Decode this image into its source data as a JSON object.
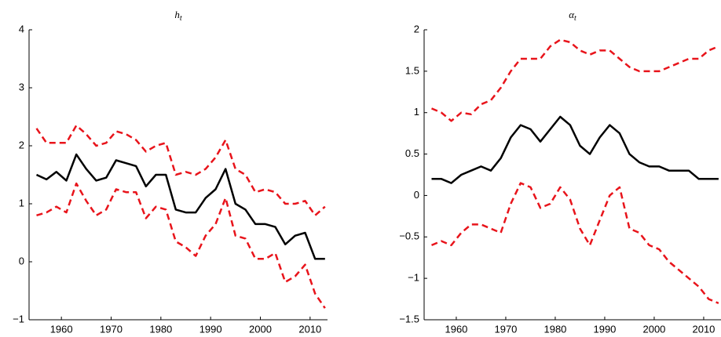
{
  "chart_data": [
    {
      "type": "line",
      "title": "h",
      "title_subscript": "t",
      "x": [
        1955,
        1957,
        1959,
        1961,
        1963,
        1965,
        1967,
        1969,
        1971,
        1973,
        1975,
        1977,
        1979,
        1981,
        1983,
        1985,
        1987,
        1989,
        1991,
        1993,
        1995,
        1997,
        1999,
        2001,
        2003,
        2005,
        2007,
        2009,
        2011,
        2013
      ],
      "xlim": [
        1953.5,
        2013.5
      ],
      "xticks": [
        1960,
        1970,
        1980,
        1990,
        2000,
        2010
      ],
      "ylim": [
        -1,
        4
      ],
      "yticks": [
        {
          "value": -1,
          "label": "−1"
        },
        0,
        1,
        2,
        3,
        4
      ],
      "series": [
        {
          "color": "#000000",
          "style": "solid",
          "values": [
            1.5,
            1.42,
            1.55,
            1.4,
            1.85,
            1.6,
            1.4,
            1.45,
            1.75,
            1.7,
            1.65,
            1.3,
            1.5,
            1.5,
            0.9,
            0.85,
            0.85,
            1.1,
            1.25,
            1.6,
            1.0,
            0.9,
            0.65,
            0.65,
            0.6,
            0.3,
            0.45,
            0.5,
            0.05,
            0.05
          ]
        },
        {
          "color": "#e8141b",
          "style": "dashed",
          "values": [
            2.3,
            2.05,
            2.05,
            2.05,
            2.35,
            2.2,
            2.0,
            2.05,
            2.25,
            2.2,
            2.1,
            1.9,
            2.0,
            2.05,
            1.5,
            1.55,
            1.5,
            1.6,
            1.8,
            2.1,
            1.6,
            1.5,
            1.2,
            1.25,
            1.2,
            1.0,
            1.0,
            1.05,
            0.8,
            0.95
          ]
        },
        {
          "color": "#e8141b",
          "style": "dashed",
          "values": [
            0.8,
            0.85,
            0.95,
            0.85,
            1.35,
            1.05,
            0.8,
            0.9,
            1.25,
            1.2,
            1.2,
            0.75,
            0.95,
            0.9,
            0.35,
            0.25,
            0.1,
            0.45,
            0.65,
            1.1,
            0.45,
            0.4,
            0.05,
            0.05,
            0.15,
            -0.35,
            -0.25,
            -0.05,
            -0.55,
            -0.8
          ]
        }
      ]
    },
    {
      "type": "line",
      "title": "α",
      "title_subscript": "t",
      "x": [
        1955,
        1957,
        1959,
        1961,
        1963,
        1965,
        1967,
        1969,
        1971,
        1973,
        1975,
        1977,
        1979,
        1981,
        1983,
        1985,
        1987,
        1989,
        1991,
        1993,
        1995,
        1997,
        1999,
        2001,
        2003,
        2005,
        2007,
        2009,
        2011,
        2013
      ],
      "xlim": [
        1953.5,
        2013.5
      ],
      "xticks": [
        1960,
        1970,
        1980,
        1990,
        2000,
        2010
      ],
      "ylim": [
        -1.5,
        2
      ],
      "yticks": [
        {
          "value": -1.5,
          "label": "−1.5"
        },
        {
          "value": -1,
          "label": "−1"
        },
        {
          "value": -0.5,
          "label": "−0.5"
        },
        0,
        0.5,
        1,
        1.5,
        2
      ],
      "series": [
        {
          "color": "#000000",
          "style": "solid",
          "values": [
            0.2,
            0.2,
            0.15,
            0.25,
            0.3,
            0.35,
            0.3,
            0.45,
            0.7,
            0.85,
            0.8,
            0.65,
            0.8,
            0.95,
            0.85,
            0.6,
            0.5,
            0.7,
            0.85,
            0.75,
            0.5,
            0.4,
            0.35,
            0.35,
            0.3,
            0.3,
            0.3,
            0.2,
            0.2,
            0.2
          ]
        },
        {
          "color": "#e8141b",
          "style": "dashed",
          "values": [
            1.05,
            1.0,
            0.9,
            1.0,
            0.98,
            1.1,
            1.15,
            1.3,
            1.5,
            1.65,
            1.65,
            1.65,
            1.8,
            1.88,
            1.85,
            1.75,
            1.7,
            1.75,
            1.75,
            1.65,
            1.55,
            1.5,
            1.5,
            1.5,
            1.55,
            1.6,
            1.65,
            1.65,
            1.75,
            1.8
          ]
        },
        {
          "color": "#e8141b",
          "style": "dashed",
          "values": [
            -0.6,
            -0.55,
            -0.6,
            -0.45,
            -0.35,
            -0.35,
            -0.4,
            -0.45,
            -0.1,
            0.15,
            0.1,
            -0.15,
            -0.1,
            0.1,
            -0.05,
            -0.4,
            -0.6,
            -0.3,
            0.0,
            0.1,
            -0.4,
            -0.45,
            -0.6,
            -0.65,
            -0.8,
            -0.9,
            -1.0,
            -1.1,
            -1.25,
            -1.3
          ]
        }
      ]
    }
  ]
}
